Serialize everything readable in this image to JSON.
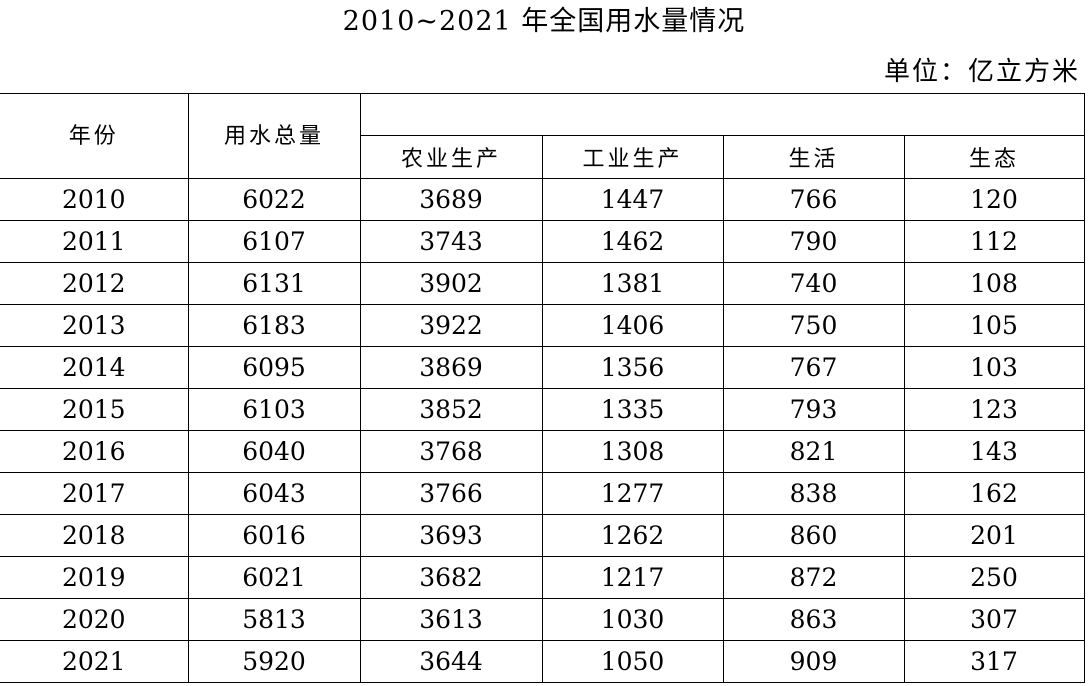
{
  "title": "2010~2021 年全国用水量情况",
  "unit": "单位：亿立方米",
  "table": {
    "header_year": "年份",
    "header_total": "用水总量",
    "header_group": "",
    "sub_headers": [
      "农业生产",
      "工业生产",
      "生活",
      "生态"
    ],
    "rows": [
      [
        "2010",
        "6022",
        "3689",
        "1447",
        "766",
        "120"
      ],
      [
        "2011",
        "6107",
        "3743",
        "1462",
        "790",
        "112"
      ],
      [
        "2012",
        "6131",
        "3902",
        "1381",
        "740",
        "108"
      ],
      [
        "2013",
        "6183",
        "3922",
        "1406",
        "750",
        "105"
      ],
      [
        "2014",
        "6095",
        "3869",
        "1356",
        "767",
        "103"
      ],
      [
        "2015",
        "6103",
        "3852",
        "1335",
        "793",
        "123"
      ],
      [
        "2016",
        "6040",
        "3768",
        "1308",
        "821",
        "143"
      ],
      [
        "2017",
        "6043",
        "3766",
        "1277",
        "838",
        "162"
      ],
      [
        "2018",
        "6016",
        "3693",
        "1262",
        "860",
        "201"
      ],
      [
        "2019",
        "6021",
        "3682",
        "1217",
        "872",
        "250"
      ],
      [
        "2020",
        "5813",
        "3613",
        "1030",
        "863",
        "307"
      ],
      [
        "2021",
        "5920",
        "3644",
        "1050",
        "909",
        "317"
      ]
    ]
  }
}
